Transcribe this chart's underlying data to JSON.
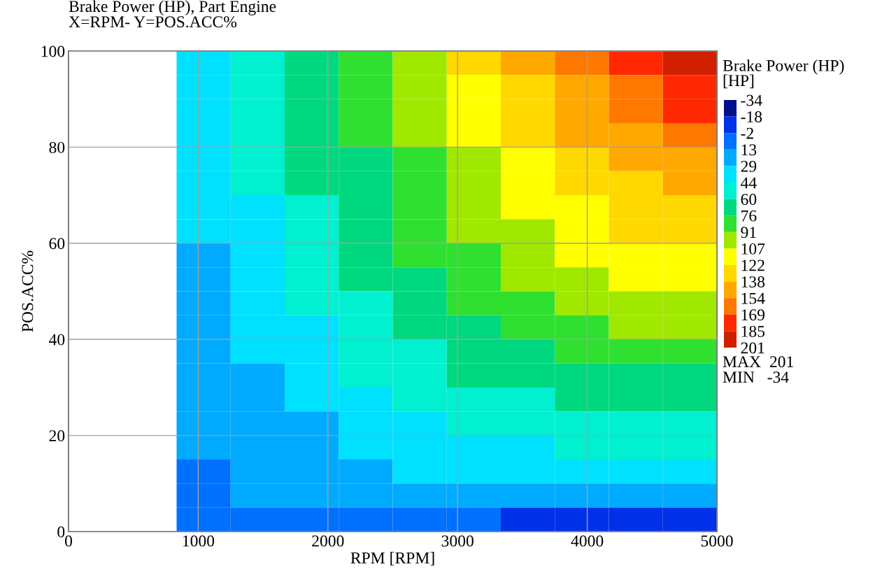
{
  "chart_data": {
    "type": "heatmap",
    "title": "Brake Power (HP), Part Engine",
    "subtitle": "X=RPM- Y=POS.ACC%",
    "xlabel": "RPM [RPM]",
    "ylabel": "POS.ACC%",
    "clabel": "Brake Power (HP)\n[HP]",
    "cells": [
      [
        null,
        null,
        41,
        55,
        70,
        84,
        103,
        123,
        142,
        158,
        176,
        193
      ],
      [
        null,
        null,
        39,
        53,
        68,
        81,
        99,
        118,
        137,
        153,
        168,
        182
      ],
      [
        null,
        null,
        37,
        51,
        66,
        79,
        96,
        113,
        132,
        148,
        160,
        172
      ],
      [
        null,
        null,
        35,
        49,
        64,
        76,
        92,
        109,
        126,
        141,
        151,
        160
      ],
      [
        null,
        null,
        33,
        47,
        62,
        74,
        89,
        104,
        120,
        134,
        144,
        152
      ],
      [
        null,
        null,
        32,
        45,
        60,
        72,
        86,
        100,
        114,
        127,
        137,
        144
      ],
      [
        null,
        null,
        30,
        43,
        58,
        70,
        83,
        96,
        109,
        120,
        130,
        137
      ],
      [
        null,
        null,
        29,
        41,
        56,
        67,
        80,
        92,
        104,
        114,
        122,
        128
      ],
      [
        null,
        null,
        27,
        39,
        53,
        64,
        76,
        88,
        99,
        108,
        115,
        120
      ],
      [
        null,
        null,
        25,
        36,
        50,
        61,
        72,
        83,
        93,
        101,
        108,
        112
      ],
      [
        null,
        null,
        23,
        34,
        47,
        57,
        68,
        78,
        87,
        94,
        100,
        104
      ],
      [
        null,
        null,
        21,
        31,
        43,
        53,
        64,
        73,
        81,
        87,
        92,
        96
      ],
      [
        null,
        null,
        20,
        29,
        39,
        49,
        59,
        67,
        74,
        79,
        83,
        86
      ],
      [
        null,
        null,
        18,
        27,
        35,
        45,
        53,
        60,
        65,
        69,
        72,
        74
      ],
      [
        null,
        null,
        17,
        25,
        32,
        40,
        47,
        53,
        57,
        60,
        62,
        63
      ],
      [
        null,
        null,
        16,
        23,
        28,
        35,
        41,
        46,
        49,
        51,
        52,
        53
      ],
      [
        null,
        null,
        14,
        20,
        25,
        30,
        37,
        41,
        43,
        44,
        45,
        46
      ],
      [
        null,
        null,
        12,
        17,
        21,
        27,
        31,
        34,
        35,
        36,
        36,
        36
      ],
      [
        null,
        null,
        9,
        13,
        17,
        20,
        22,
        24,
        24,
        23,
        21,
        19
      ],
      [
        null,
        null,
        4,
        4,
        4,
        3,
        1,
        -1,
        -3,
        -6,
        -10,
        -16
      ]
    ],
    "clim": [
      -34,
      201
    ],
    "cticks": [
      -34,
      -18,
      -2,
      13,
      29,
      44,
      60,
      76,
      91,
      107,
      122,
      138,
      154,
      169,
      185,
      201
    ],
    "colors": [
      "#00108c",
      "#0030e8",
      "#0070ff",
      "#00aaff",
      "#00e0ff",
      "#00f0d0",
      "#00d880",
      "#30e030",
      "#a0e800",
      "#ffff00",
      "#ffd800",
      "#ffa800",
      "#ff7800",
      "#ff2800",
      "#d02000"
    ],
    "xlim": [
      0,
      5000
    ],
    "xticks": [
      0,
      1000,
      2000,
      3000,
      4000,
      5000
    ],
    "ylim": [
      0,
      100
    ],
    "yticks": [
      0,
      20,
      40,
      60,
      80,
      100
    ],
    "grid": true,
    "annotations": [
      "MAX  201",
      "MIN   -34"
    ]
  }
}
